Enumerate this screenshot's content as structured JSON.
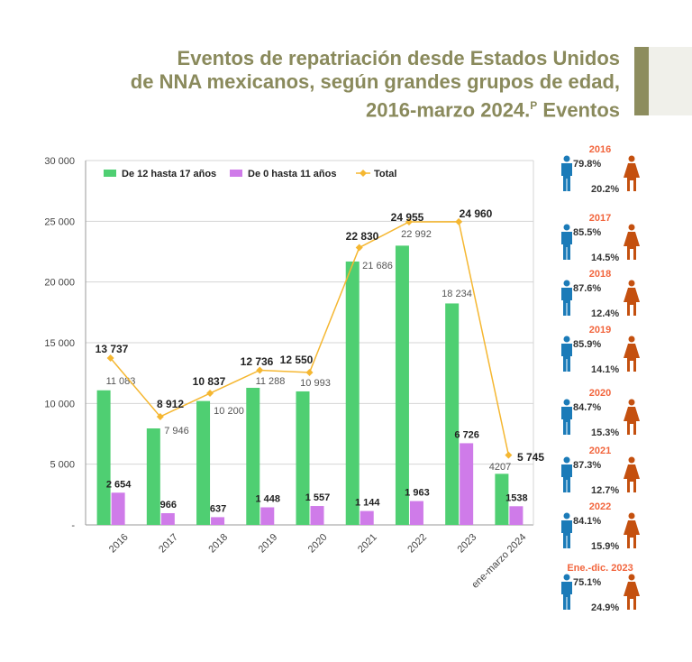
{
  "title": {
    "line1": "Eventos de repatriación desde Estados Unidos",
    "line2": "de NNA mexicanos, según grandes grupos de edad,",
    "line3a": "2016-marzo 2024.",
    "sup": "P",
    "line3b": " Eventos"
  },
  "colors": {
    "green": "#4fcf72",
    "purple": "#cf7be9",
    "total": "#f5b731",
    "male": "#1b7bb8",
    "female": "#c4500f",
    "year": "#f2653d"
  },
  "chart_data": {
    "type": "bar",
    "categories": [
      "2016",
      "2017",
      "2018",
      "2019",
      "2020",
      "2021",
      "2022",
      "2023",
      "ene-marzo 2024"
    ],
    "series": [
      {
        "name": "De 12 hasta 17 años",
        "type": "bar",
        "values": [
          11083,
          7946,
          10200,
          11288,
          10993,
          21686,
          22992,
          18234,
          4207
        ],
        "labels": [
          "11 083",
          "7 946",
          "10 200",
          "11 288",
          "10 993",
          "21 686",
          "22 992",
          "18 234",
          "4207"
        ]
      },
      {
        "name": "De 0 hasta 11 años",
        "type": "bar",
        "values": [
          2654,
          966,
          637,
          1448,
          1557,
          1144,
          1963,
          6726,
          1538
        ],
        "labels": [
          "2 654",
          "966",
          "637",
          "1 448",
          "1 557",
          "1 144",
          "1 963",
          "6 726",
          "1538"
        ]
      },
      {
        "name": "Total",
        "type": "line",
        "values": [
          13737,
          8912,
          10837,
          12736,
          12550,
          22830,
          24955,
          24960,
          5745
        ],
        "labels": [
          "13 737",
          "8 912",
          "10 837",
          "12 736",
          "12 550",
          "22 830",
          "24 955",
          "24 960",
          "5 745"
        ]
      }
    ],
    "yticks": [
      "-",
      "5 000",
      "10 000",
      "15 000",
      "20 000",
      "25 000",
      "30 000"
    ],
    "ylim": [
      0,
      30000
    ],
    "legend": "top-left"
  },
  "sex": [
    {
      "year": "2016",
      "male": "79.8%",
      "female": "20.2%"
    },
    {
      "year": "2017",
      "male": "85.5%",
      "female": "14.5%"
    },
    {
      "year": "2018",
      "male": "87.6%",
      "female": "12.4%"
    },
    {
      "year": "2019",
      "male": "85.9%",
      "female": "14.1%"
    },
    {
      "year": "2020",
      "male": "84.7%",
      "female": "15.3%"
    },
    {
      "year": "2021",
      "male": "87.3%",
      "female": "12.7%"
    },
    {
      "year": "2022",
      "male": "84.1%",
      "female": "15.9%"
    },
    {
      "year": "Ene.-dic. 2023",
      "male": "75.1%",
      "female": "24.9%"
    }
  ]
}
